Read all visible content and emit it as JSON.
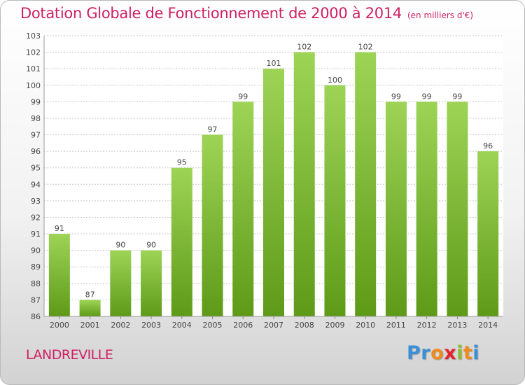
{
  "header": {
    "title": "Dotation Globale de Fonctionnement de 2000 à 2014",
    "subtitle": "(en milliers d'€)"
  },
  "footer": {
    "town": "LANDREVILLE",
    "brand_letters": [
      "P",
      "r",
      "o",
      "x",
      "i",
      "t",
      "i"
    ],
    "brand_colors": [
      "#3a8fd6",
      "#3a8fd6",
      "#f08a1c",
      "#e5232a",
      "#8bbf2a",
      "#f08a1c",
      "#3a8fd6"
    ]
  },
  "colors": {
    "title": "#cf1f62",
    "bar_top": "#9ed456",
    "bar_bottom": "#5e9a18",
    "grid": "#c8c8c8"
  },
  "chart_data": {
    "type": "bar",
    "categories": [
      "2000",
      "2001",
      "2002",
      "2003",
      "2004",
      "2005",
      "2006",
      "2007",
      "2008",
      "2009",
      "2010",
      "2011",
      "2012",
      "2013",
      "2014"
    ],
    "values": [
      91,
      87,
      90,
      90,
      95,
      97,
      99,
      101,
      102,
      100,
      102,
      99,
      99,
      99,
      96
    ],
    "ylim": [
      86,
      103
    ],
    "yticks": [
      86,
      87,
      88,
      89,
      90,
      91,
      92,
      93,
      94,
      95,
      96,
      97,
      98,
      99,
      100,
      101,
      102,
      103
    ],
    "grid": true,
    "title": "Dotation Globale de Fonctionnement de 2000 à 2014",
    "xlabel": "",
    "ylabel": ""
  }
}
